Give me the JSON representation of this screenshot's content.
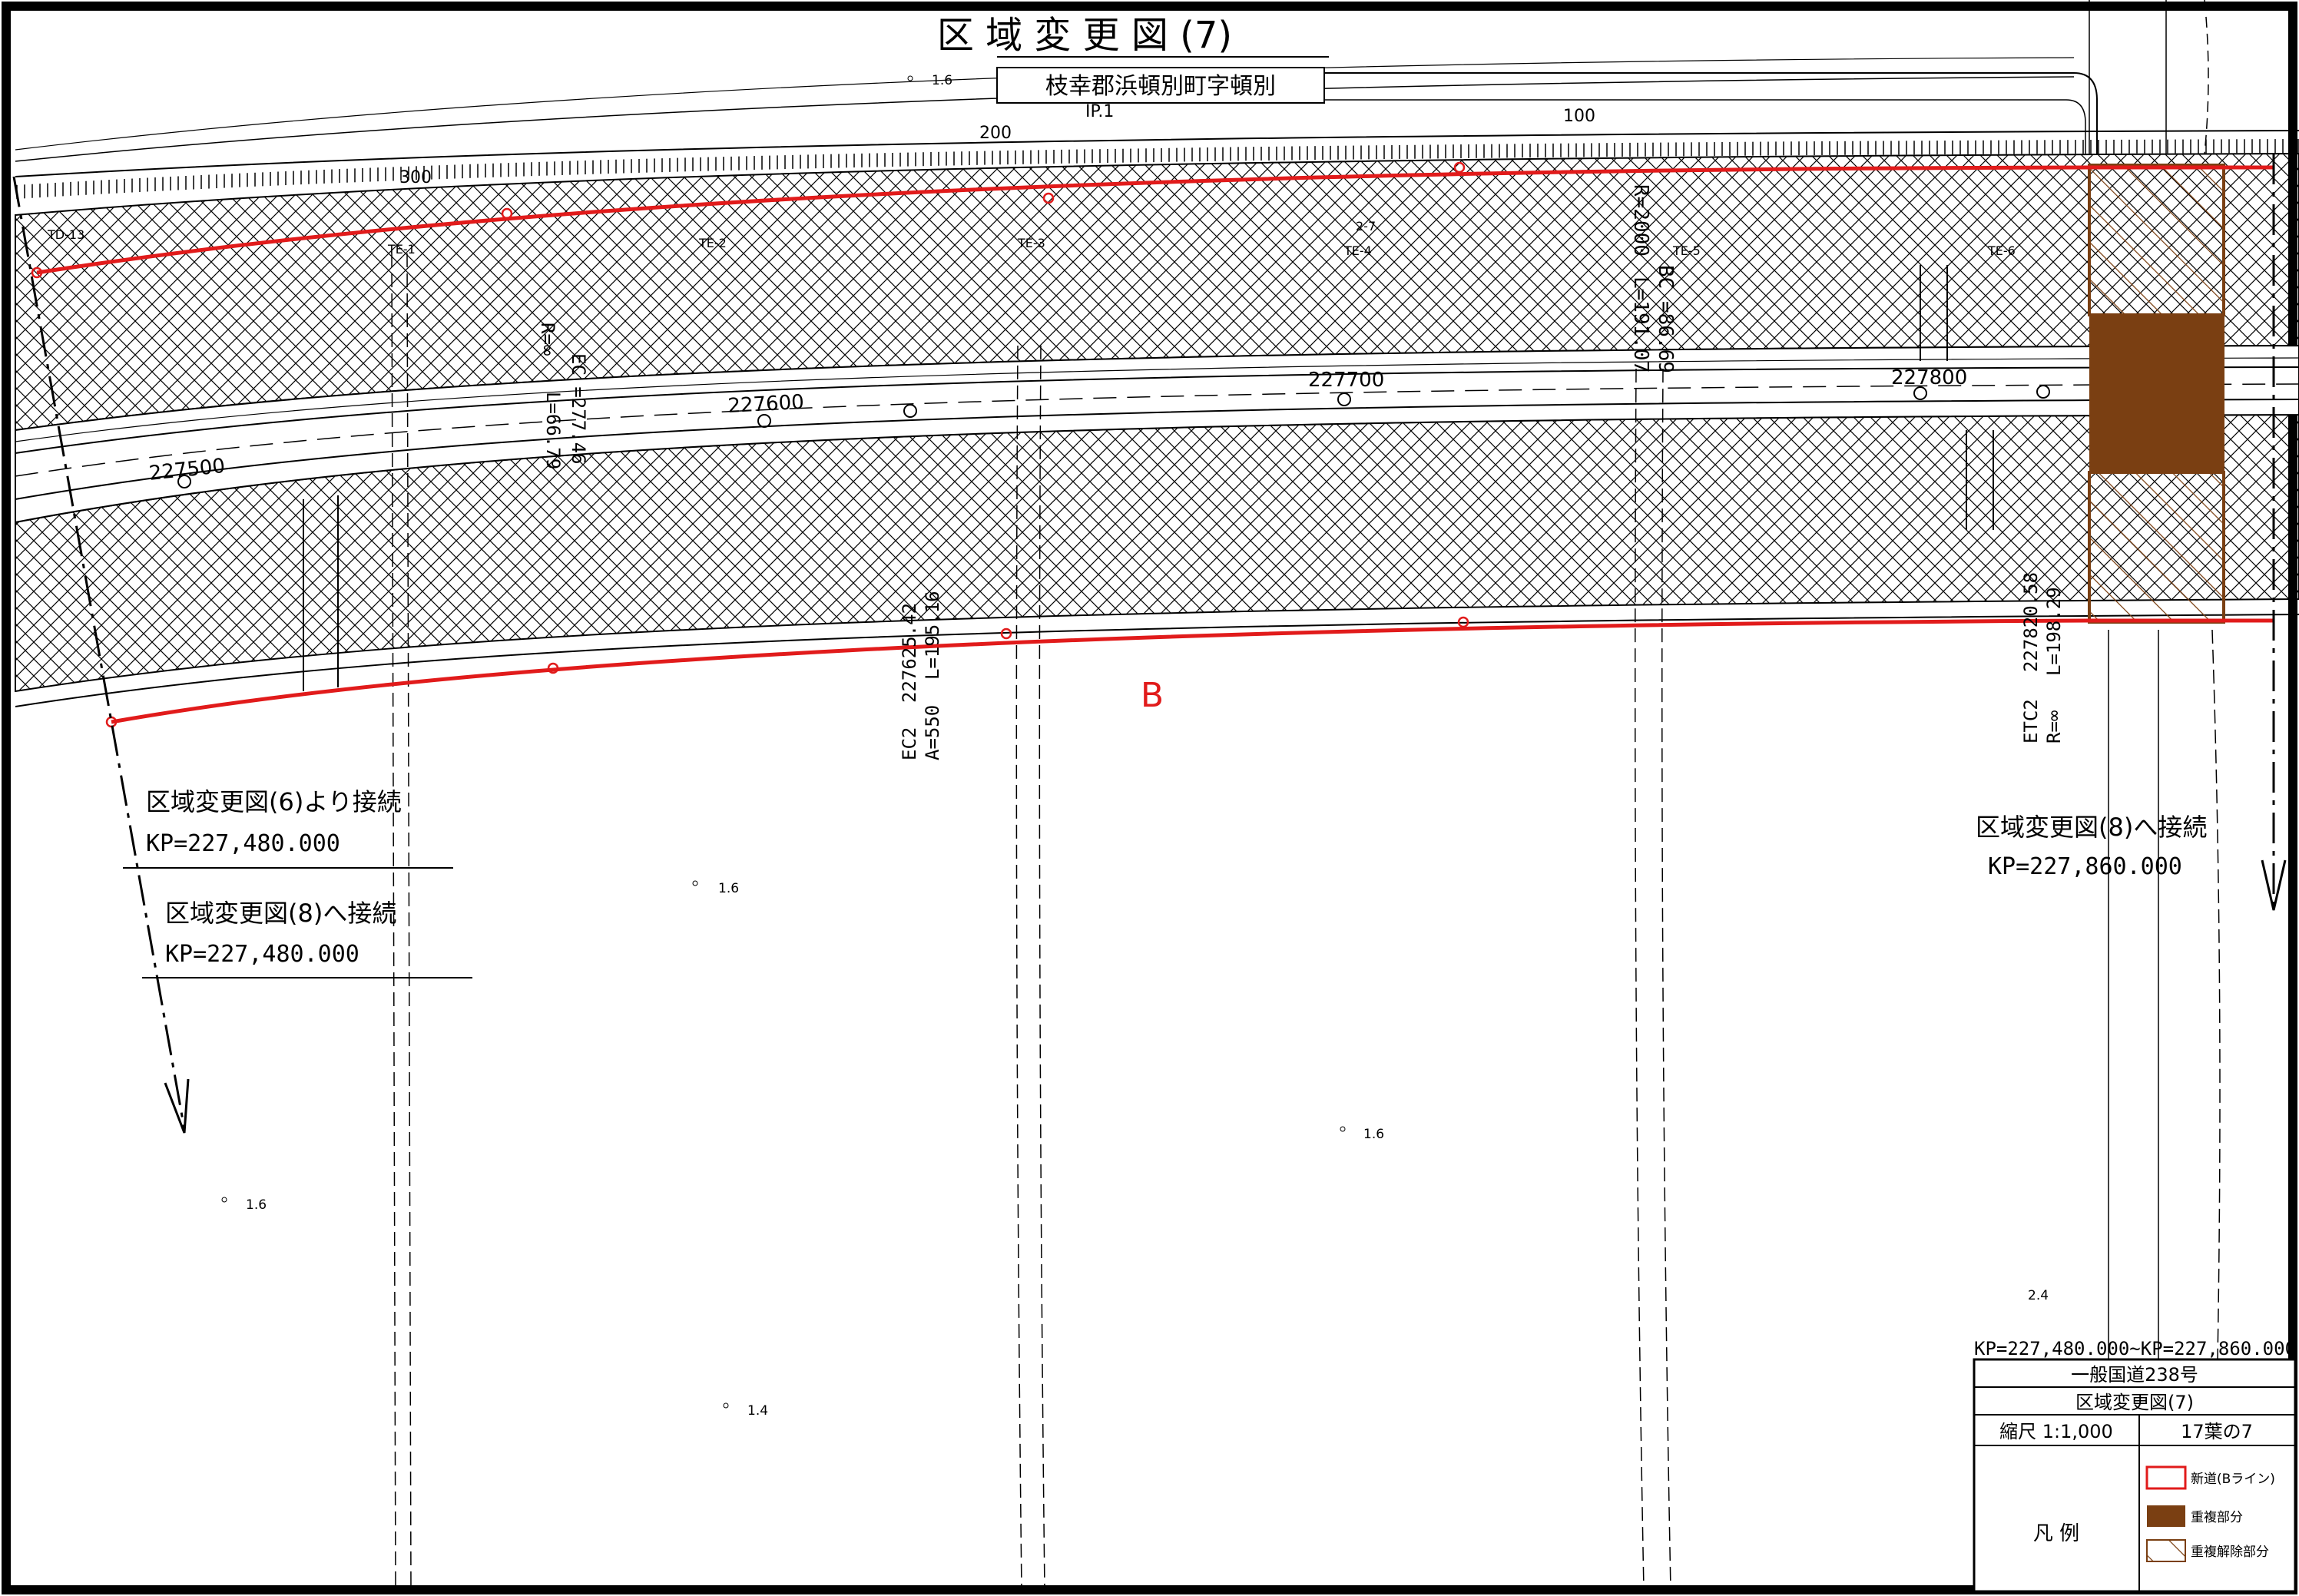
{
  "title": "区 域 変 更 図 (7)",
  "location": "枝幸郡浜頓別町字頓別",
  "route_letter": "B",
  "stations": [
    "227500",
    "227600",
    "227700",
    "227800"
  ],
  "sta_100": "100",
  "sta_200": "200",
  "sta_300": "300",
  "ip_label": "IP.1",
  "te_labels": [
    "TE-1",
    "TE-2",
    "TE-3",
    "TE-4",
    "TE-5",
    "TE-6"
  ],
  "td_label": "TD-13",
  "te7_label": "2-7",
  "curve_r_inf": "R=∞",
  "curve_ec": "EC =277.46",
  "curve_l1": "L=66.79",
  "curve_r2000": "R=2000",
  "curve_bc": "BC =86.69",
  "curve_l2": "L=191.07",
  "curve_ec2_sta": "227625.42",
  "curve_l3": "L=195.16",
  "curve_ec2": "EC2",
  "curve_a550": "A=550",
  "curve_etc2_sta": "227820.58",
  "curve_l4": "L=198.29",
  "curve_etc2": "ETC2",
  "curve_r_inf2": "R=∞",
  "elev": {
    "a": "1.6",
    "b": "1.6",
    "c": "1.6",
    "d": "1.6",
    "e": "1.4",
    "f": "2.4"
  },
  "conn_from6": "区域変更図(6)より接続",
  "conn_from6_kp": "KP=227,480.000",
  "conn_to8_left": "区域変更図(8)へ接続",
  "conn_to8_left_kp": "KP=227,480.000",
  "conn_to8_right": "区域変更図(8)へ接続",
  "conn_to8_right_kp": "KP=227,860.000",
  "title_block": {
    "kp_range": "KP=227,480.000~KP=227,860.000",
    "road_name": "一般国道238号",
    "sheet_title": "区域変更図(7)",
    "scale": "縮尺 1:1,000",
    "sheet_number": "17葉の7",
    "legend_heading": "凡 例",
    "legend": [
      {
        "label": "新道(Bライン)",
        "color": "#e11b1b",
        "style": "outline"
      },
      {
        "label": "重複部分",
        "color": "#7a3f12",
        "style": "fill"
      },
      {
        "label": "重複解除部分",
        "color": "#7a3f12",
        "style": "hatch"
      }
    ]
  },
  "colors": {
    "new_road": "#e11b1b",
    "overlap": "#7a3f12",
    "line": "#000000"
  }
}
